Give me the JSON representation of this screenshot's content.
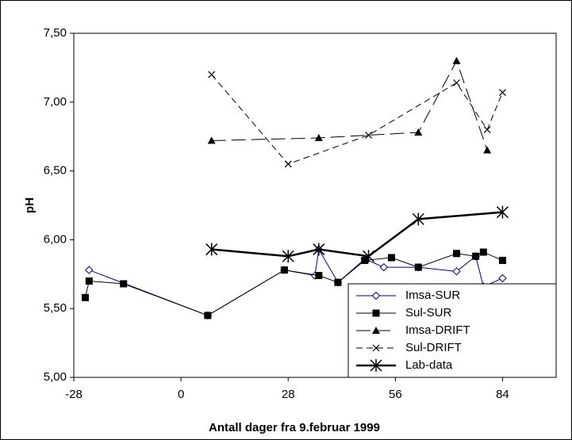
{
  "chart_data": {
    "type": "line",
    "x_label": "Antall dager fra 9.februar 1999",
    "y_label": "pH",
    "xlim": [
      -28,
      98
    ],
    "xticks": [
      -28,
      0,
      28,
      56,
      84
    ],
    "ylim": [
      5,
      7.5
    ],
    "yticks": [
      {
        "value": 5,
        "label": "5,00"
      },
      {
        "value": 5.5,
        "label": "5,50"
      },
      {
        "value": 6,
        "label": "6,00"
      },
      {
        "value": 6.5,
        "label": "6,50"
      },
      {
        "value": 7,
        "label": "7,00"
      },
      {
        "value": 7.5,
        "label": "7,50"
      }
    ],
    "legend": "lower-right",
    "series": [
      {
        "name": "Imsa-SUR",
        "color": "#000080",
        "marker": "diamond",
        "dash": "solid",
        "width": 1,
        "x": [
          -24,
          7,
          27,
          35,
          36,
          41,
          48,
          53,
          62,
          72,
          77,
          79,
          84
        ],
        "values": [
          5.78,
          5.45,
          5.78,
          5.74,
          5.93,
          5.69,
          5.86,
          5.8,
          5.8,
          5.77,
          5.88,
          5.66,
          5.72
        ]
      },
      {
        "name": "Sul-SUR",
        "color": "#000000",
        "marker": "square",
        "dash": "solid",
        "width": 1,
        "x": [
          -25,
          -24,
          -15,
          7,
          27,
          36,
          41,
          48,
          55,
          62,
          72,
          77,
          79,
          84
        ],
        "values": [
          5.58,
          5.7,
          5.68,
          5.45,
          5.78,
          5.74,
          5.69,
          5.85,
          5.87,
          5.8,
          5.9,
          5.88,
          5.91,
          5.85
        ]
      },
      {
        "name": "Imsa-DRIFT",
        "color": "#000000",
        "marker": "triangle",
        "dash": "longdash",
        "width": 1,
        "x": [
          8,
          36,
          62,
          72,
          80
        ],
        "values": [
          6.72,
          6.74,
          6.78,
          7.3,
          6.65
        ]
      },
      {
        "name": "Sul-DRIFT",
        "color": "#000000",
        "marker": "cross",
        "dash": "dash",
        "width": 1,
        "x": [
          8,
          28,
          49,
          72,
          80,
          84
        ],
        "values": [
          7.2,
          6.55,
          6.76,
          7.14,
          6.8,
          7.07
        ]
      },
      {
        "name": "Lab-data",
        "color": "#000000",
        "marker": "star",
        "dash": "solid",
        "width": 2.5,
        "x": [
          8,
          28,
          36,
          49,
          62,
          84
        ],
        "values": [
          5.93,
          5.88,
          5.93,
          5.88,
          6.15,
          6.2
        ]
      }
    ]
  }
}
